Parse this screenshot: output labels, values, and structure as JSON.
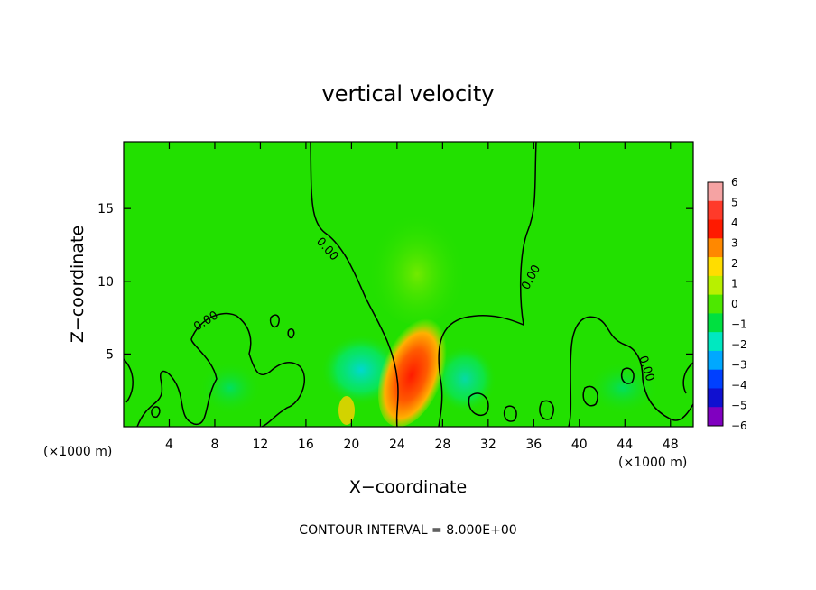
{
  "chart_data": {
    "type": "heatmap",
    "title": "vertical velocity",
    "xlabel": "X−coordinate",
    "ylabel": "Z−coordinate",
    "x_unit_left": "(×1000 m)",
    "x_unit_right": "(×1000 m)",
    "xlim": [
      0,
      50
    ],
    "ylim": [
      0,
      19.6
    ],
    "x_ticks": [
      "4",
      "8",
      "12",
      "16",
      "20",
      "24",
      "28",
      "32",
      "36",
      "40",
      "44",
      "48"
    ],
    "x_tick_values": [
      4,
      8,
      12,
      16,
      20,
      24,
      28,
      32,
      36,
      40,
      44,
      48
    ],
    "y_ticks": [
      "5",
      "10",
      "15"
    ],
    "y_tick_values": [
      5,
      10,
      15
    ],
    "colorbar": {
      "ticks": [
        "6",
        "5",
        "4",
        "3",
        "2",
        "1",
        "0",
        "−1",
        "−2",
        "−3",
        "−4",
        "−5",
        "−6"
      ],
      "values": [
        6,
        5,
        4,
        3,
        2,
        1,
        0,
        -1,
        -2,
        -3,
        -4,
        -5,
        -6
      ],
      "colors": [
        "#f5a3a3",
        "#ff3a2a",
        "#ff1a00",
        "#ff8800",
        "#ffdd00",
        "#b8f000",
        "#4de800",
        "#00e040",
        "#00e8c0",
        "#00a8ff",
        "#0040ff",
        "#1010d0",
        "#8000c0"
      ]
    },
    "contour_labels": [
      "0.00",
      "0.00",
      "0.00",
      "0.00"
    ],
    "background_color": "#22e000",
    "footnote": "CONTOUR INTERVAL = 8.000E+00"
  }
}
